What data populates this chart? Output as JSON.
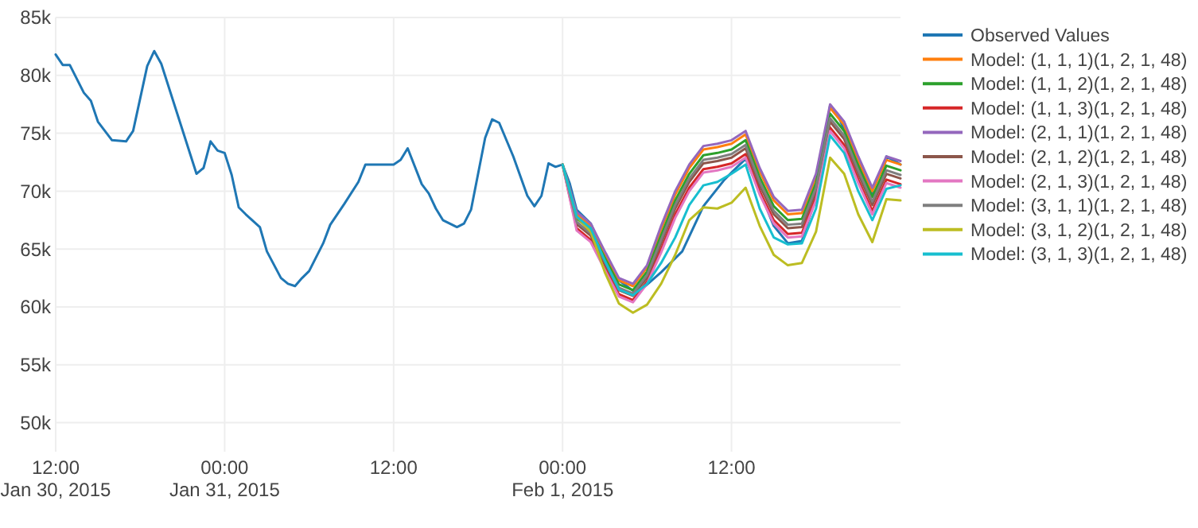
{
  "chart_data": {
    "type": "line",
    "xlim": [
      "2015-01-30T12:00",
      "2015-02-02T00:00"
    ],
    "xticks": [
      {
        "value": "2015-01-30T12:00",
        "label": "12:00\nJan 30, 2015"
      },
      {
        "value": "2015-01-31T00:00",
        "label": "00:00\nJan 31, 2015"
      },
      {
        "value": "2015-01-31T12:00",
        "label": "12:00"
      },
      {
        "value": "2015-02-01T00:00",
        "label": "00:00\nFeb 1, 2015"
      },
      {
        "value": "2015-02-01T12:00",
        "label": "12:00"
      }
    ],
    "ylim": [
      47500,
      85000
    ],
    "yticks": [
      {
        "value": 50000,
        "label": "50k"
      },
      {
        "value": 55000,
        "label": "55k"
      },
      {
        "value": 60000,
        "label": "60k"
      },
      {
        "value": 65000,
        "label": "65k"
      },
      {
        "value": 70000,
        "label": "70k"
      },
      {
        "value": 75000,
        "label": "75k"
      },
      {
        "value": 80000,
        "label": "80k"
      },
      {
        "value": 85000,
        "label": "85k"
      }
    ],
    "grid": true,
    "legend": "right",
    "x": [
      "2015-02-01T00:00",
      "2015-02-01T01:00",
      "2015-02-01T02:00",
      "2015-02-01T03:00",
      "2015-02-01T04:00",
      "2015-02-01T05:00",
      "2015-02-01T06:00",
      "2015-02-01T07:00",
      "2015-02-01T08:00",
      "2015-02-01T09:00",
      "2015-02-01T10:00",
      "2015-02-01T11:00",
      "2015-02-01T12:00",
      "2015-02-01T13:00",
      "2015-02-01T14:00",
      "2015-02-01T15:00",
      "2015-02-01T16:00",
      "2015-02-01T17:00",
      "2015-02-01T18:00",
      "2015-02-01T19:00",
      "2015-02-01T20:00",
      "2015-02-01T21:00",
      "2015-02-01T22:00",
      "2015-02-01T23:00",
      "2015-02-02T00:00"
    ],
    "series": [
      {
        "name": "Observed Values",
        "color": "#1f77b4",
        "x": [
          "2015-01-30T12:00",
          "2015-01-30T12:30",
          "2015-01-30T13:00",
          "2015-01-30T14:00",
          "2015-01-30T14:30",
          "2015-01-30T15:00",
          "2015-01-30T16:00",
          "2015-01-30T17:00",
          "2015-01-30T17:30",
          "2015-01-30T18:30",
          "2015-01-30T19:00",
          "2015-01-30T19:30",
          "2015-01-30T22:00",
          "2015-01-30T22:30",
          "2015-01-30T23:00",
          "2015-01-30T23:30",
          "2015-01-31T00:00",
          "2015-01-31T00:30",
          "2015-01-31T01:00",
          "2015-01-31T01:30",
          "2015-01-31T02:30",
          "2015-01-31T03:00",
          "2015-01-31T04:00",
          "2015-01-31T04:30",
          "2015-01-31T05:00",
          "2015-01-31T05:30",
          "2015-01-31T06:00",
          "2015-01-31T07:00",
          "2015-01-31T07:30",
          "2015-01-31T08:30",
          "2015-01-31T09:30",
          "2015-01-31T10:00",
          "2015-01-31T11:00",
          "2015-01-31T12:00",
          "2015-01-31T12:30",
          "2015-01-31T13:00",
          "2015-01-31T14:00",
          "2015-01-31T14:30",
          "2015-01-31T15:00",
          "2015-01-31T15:30",
          "2015-01-31T16:30",
          "2015-01-31T17:00",
          "2015-01-31T17:30",
          "2015-01-31T18:30",
          "2015-01-31T19:00",
          "2015-01-31T19:30",
          "2015-01-31T20:30",
          "2015-01-31T21:30",
          "2015-01-31T22:00",
          "2015-01-31T22:30",
          "2015-01-31T23:00",
          "2015-01-31T23:30",
          "2015-02-01T00:00",
          "2015-02-01T00:30",
          "2015-02-01T01:00",
          "2015-02-01T02:00",
          "2015-02-01T03:00",
          "2015-02-01T04:00",
          "2015-02-01T05:00",
          "2015-02-01T05:30",
          "2015-02-01T07:00",
          "2015-02-01T08:30",
          "2015-02-01T10:00",
          "2015-02-01T11:30",
          "2015-02-01T13:00",
          "2015-02-01T14:00",
          "2015-02-01T15:00",
          "2015-02-01T16:00",
          "2015-02-01T17:00",
          "2015-02-01T18:00",
          "2015-02-01T19:00",
          "2015-02-01T19:30",
          "2015-02-01T21:00",
          "2015-02-01T22:00",
          "2015-02-01T22:30",
          "2015-02-01T23:00",
          "2015-02-02T00:00"
        ],
        "values": [
          81800,
          80900,
          80900,
          78500,
          77800,
          76000,
          74400,
          74300,
          75200,
          80800,
          82100,
          81000,
          71500,
          72000,
          74300,
          73500,
          73300,
          71400,
          68600,
          68000,
          66900,
          64800,
          62500,
          62000,
          61800,
          62500,
          63100,
          65500,
          67100,
          68900,
          70800,
          72300,
          72300,
          72300,
          72700,
          73700,
          70600,
          69800,
          68500,
          67500,
          66900,
          67200,
          68400,
          74600,
          76200,
          75900,
          73000,
          69600,
          68700,
          69600,
          72400,
          72100,
          72300,
          70700,
          68400,
          67200,
          64500,
          62300,
          61400,
          61400,
          63000,
          64800,
          68700,
          71000,
          72800,
          70000,
          67000,
          65500,
          65700,
          69500,
          77400,
          76700,
          72500,
          69800,
          70300,
          73000,
          72300
        ]
      },
      {
        "name": "Model: (1, 1, 1)(1, 2, 1, 48)",
        "color": "#ff7f0e",
        "values": [
          72300,
          68000,
          67000,
          64600,
          62300,
          61800,
          63400,
          66700,
          69700,
          72000,
          73600,
          73800,
          74100,
          74900,
          71700,
          69200,
          68000,
          68100,
          71200,
          77200,
          75700,
          72700,
          70000,
          72700,
          72300
        ]
      },
      {
        "name": "Model: (1, 1, 2)(1, 2, 1, 48)",
        "color": "#2ca02c",
        "values": [
          72300,
          67650,
          66650,
          64250,
          61950,
          61450,
          63050,
          66200,
          69200,
          71500,
          73100,
          73300,
          73600,
          74400,
          71200,
          68700,
          67500,
          67600,
          70700,
          76700,
          75200,
          72200,
          69500,
          72200,
          71800
        ]
      },
      {
        "name": "Model: (1, 1, 3)(1, 2, 1, 48)",
        "color": "#d62728",
        "values": [
          72300,
          66800,
          65800,
          63400,
          61100,
          60600,
          62200,
          65000,
          68000,
          70300,
          71900,
          72100,
          72400,
          73200,
          70000,
          67500,
          66300,
          66400,
          69500,
          75500,
          74000,
          71000,
          68300,
          71000,
          70600
        ]
      },
      {
        "name": "Model: (2, 1, 1)(1, 2, 1, 48)",
        "color": "#9467bd",
        "values": [
          72300,
          68200,
          67200,
          64800,
          62500,
          62000,
          63600,
          67000,
          70000,
          72300,
          73900,
          74100,
          74400,
          75200,
          72000,
          69500,
          68300,
          68400,
          71500,
          77500,
          76000,
          73000,
          70300,
          73000,
          72600
        ]
      },
      {
        "name": "Model: (2, 1, 2)(1, 2, 1, 48)",
        "color": "#8c564b",
        "values": [
          72300,
          67150,
          66150,
          63750,
          61450,
          60950,
          62550,
          65500,
          68500,
          70800,
          72400,
          72600,
          72900,
          73700,
          70500,
          68000,
          66800,
          66900,
          70000,
          76000,
          74500,
          71500,
          68800,
          71500,
          71100
        ]
      },
      {
        "name": "Model: (2, 1, 3)(1, 2, 1, 48)",
        "color": "#e377c2",
        "values": [
          72300,
          66600,
          65600,
          63200,
          60900,
          60400,
          62000,
          64700,
          67700,
          70000,
          71600,
          71800,
          72100,
          72900,
          69700,
          67200,
          66000,
          66100,
          69200,
          75200,
          73700,
          70700,
          68000,
          70700,
          70300
        ]
      },
      {
        "name": "Model: (3, 1, 1)(1, 2, 1, 48)",
        "color": "#7f7f7f",
        "values": [
          72300,
          67350,
          66350,
          63950,
          61650,
          61150,
          62750,
          65800,
          68800,
          71100,
          72700,
          72900,
          73200,
          74000,
          70800,
          68300,
          67100,
          67200,
          70300,
          76300,
          74800,
          71800,
          69100,
          71800,
          71400
        ]
      },
      {
        "name": "Model: (3, 1, 2)(1, 2, 1, 48)",
        "color": "#bcbd22",
        "values": [
          72300,
          67800,
          66500,
          63000,
          60300,
          59500,
          60200,
          62000,
          64500,
          67500,
          68600,
          68500,
          69000,
          70300,
          67000,
          64500,
          63600,
          63800,
          66500,
          72900,
          71500,
          68000,
          65600,
          69300,
          69200
        ]
      },
      {
        "name": "Model: (3, 1, 3)(1, 2, 1, 48)",
        "color": "#17becf",
        "values": [
          72300,
          67800,
          66800,
          64000,
          61500,
          61000,
          62000,
          63800,
          66000,
          68800,
          70500,
          70800,
          71500,
          72300,
          68500,
          66000,
          65400,
          65500,
          68500,
          74800,
          73300,
          70000,
          67500,
          70200,
          70500
        ]
      }
    ]
  }
}
